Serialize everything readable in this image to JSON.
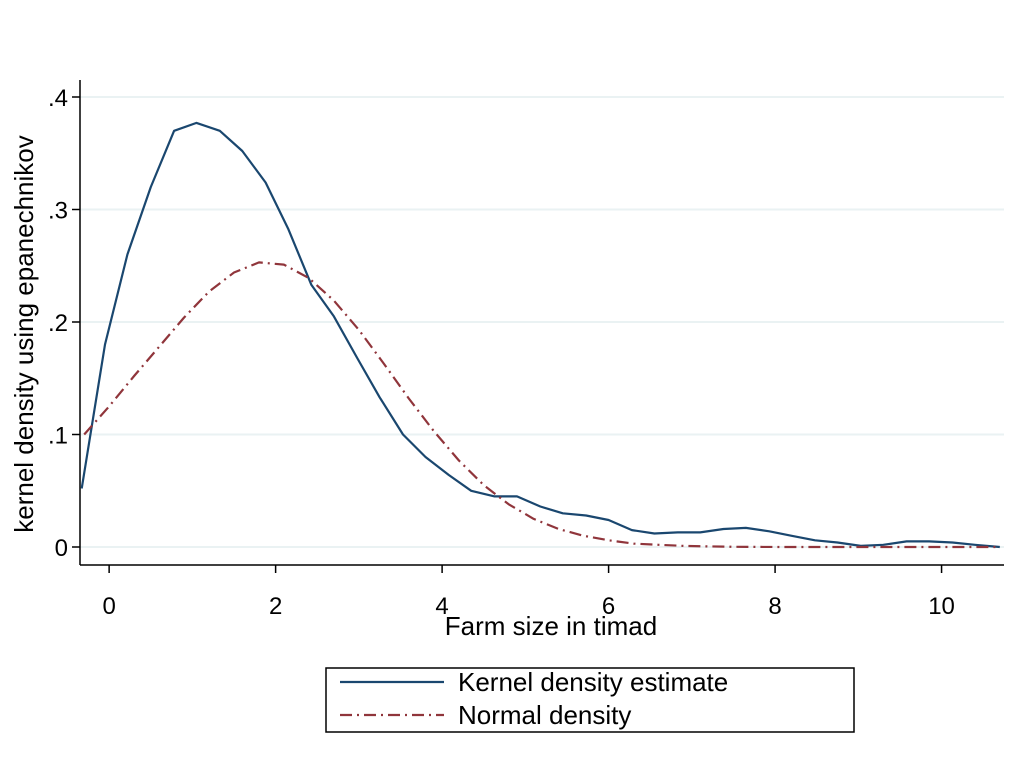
{
  "chart_data": {
    "type": "line",
    "title": "",
    "xlabel": "Farm size in timad",
    "ylabel": "kernel density using epanechnikov",
    "xlim": [
      -0.35,
      10.75
    ],
    "ylim": [
      0,
      0.4
    ],
    "x_ticks": [
      0,
      2,
      4,
      6,
      8,
      10
    ],
    "x_tick_labels": [
      "0",
      "2",
      "4",
      "6",
      "8",
      "10"
    ],
    "y_ticks": [
      0,
      0.1,
      0.2,
      0.3,
      0.4
    ],
    "y_tick_labels": [
      "0",
      ".1",
      ".2",
      ".3",
      ".4"
    ],
    "grid": true,
    "legend_position": "bottom",
    "series": [
      {
        "name": "Kernel density estimate",
        "color": "#1a476f",
        "style": "solid",
        "x": [
          -0.33,
          -0.05,
          0.22,
          0.5,
          0.78,
          1.05,
          1.33,
          1.6,
          1.88,
          2.15,
          2.43,
          2.7,
          2.98,
          3.25,
          3.53,
          3.8,
          4.08,
          4.35,
          4.63,
          4.9,
          5.18,
          5.45,
          5.73,
          6.0,
          6.28,
          6.55,
          6.83,
          7.1,
          7.38,
          7.65,
          7.93,
          8.2,
          8.48,
          8.75,
          9.03,
          9.3,
          9.58,
          9.85,
          10.13,
          10.4,
          10.7
        ],
        "y": [
          0.052,
          0.18,
          0.26,
          0.32,
          0.37,
          0.377,
          0.37,
          0.352,
          0.324,
          0.283,
          0.233,
          0.205,
          0.168,
          0.133,
          0.1,
          0.08,
          0.064,
          0.05,
          0.045,
          0.045,
          0.036,
          0.03,
          0.028,
          0.024,
          0.015,
          0.012,
          0.013,
          0.013,
          0.016,
          0.017,
          0.014,
          0.01,
          0.006,
          0.004,
          0.001,
          0.002,
          0.005,
          0.005,
          0.004,
          0.002,
          0.0
        ]
      },
      {
        "name": "Normal density",
        "color": "#90353b",
        "style": "dash-dot",
        "x": [
          -0.3,
          0.0,
          0.3,
          0.6,
          0.9,
          1.2,
          1.5,
          1.8,
          2.1,
          2.4,
          2.7,
          3.0,
          3.3,
          3.6,
          3.9,
          4.2,
          4.5,
          4.8,
          5.1,
          5.4,
          5.7,
          6.0,
          6.3,
          6.6,
          6.9,
          7.2,
          7.5,
          7.8,
          8.1,
          8.4,
          8.7,
          9.0,
          9.3,
          9.6,
          9.9,
          10.2,
          10.5,
          10.7
        ],
        "y": [
          0.1,
          0.125,
          0.152,
          0.178,
          0.204,
          0.227,
          0.244,
          0.253,
          0.251,
          0.239,
          0.219,
          0.193,
          0.163,
          0.132,
          0.103,
          0.077,
          0.055,
          0.038,
          0.025,
          0.016,
          0.01,
          0.006,
          0.003,
          0.002,
          0.001,
          0.0005,
          0.0002,
          0.0001,
          0.0,
          0.0,
          0.0,
          0.0,
          0.0,
          0.0,
          0.0,
          0.0,
          0.0,
          0.0
        ]
      }
    ]
  }
}
